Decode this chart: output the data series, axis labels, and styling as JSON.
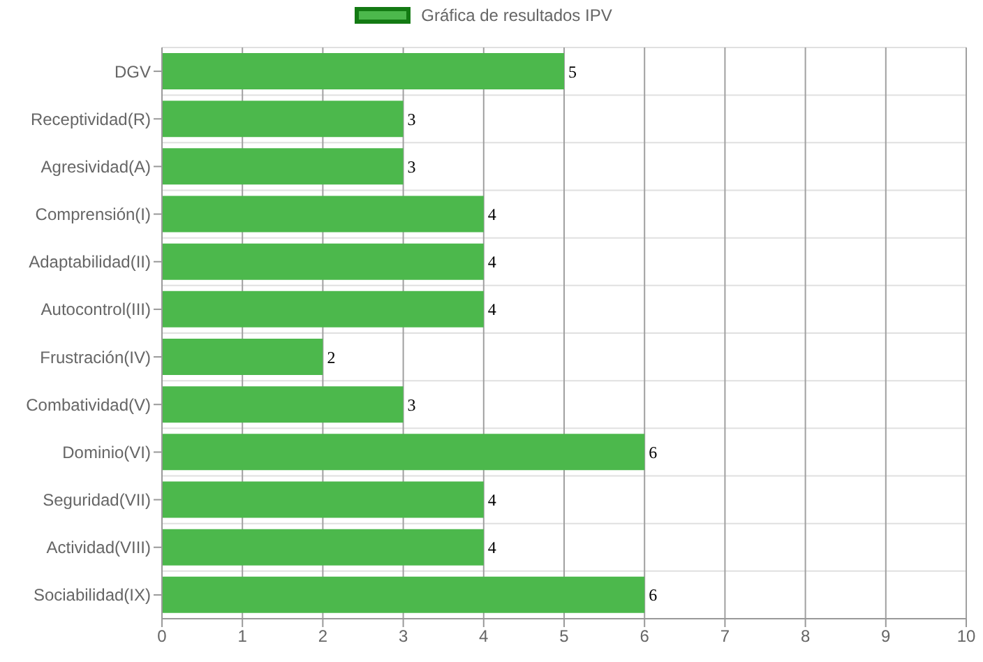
{
  "chart_data": {
    "type": "bar",
    "orientation": "horizontal",
    "categories": [
      "DGV",
      "Receptividad(R)",
      "Agresividad(A)",
      "Comprensión(I)",
      "Adaptabilidad(II)",
      "Autocontrol(III)",
      "Frustración(IV)",
      "Combatividad(V)",
      "Dominio(VI)",
      "Seguridad(VII)",
      "Actividad(VIII)",
      "Sociabilidad(IX)"
    ],
    "series": [
      {
        "name": "Gráfica de resultados IPV",
        "color": "#4cb84c",
        "values": [
          5,
          3,
          3,
          4,
          4,
          4,
          2,
          3,
          6,
          4,
          4,
          6
        ]
      }
    ],
    "xlim": [
      0,
      10
    ],
    "xticks": [
      0,
      1,
      2,
      3,
      4,
      5,
      6,
      7,
      8,
      9,
      10
    ],
    "grid": true,
    "legend": "top",
    "data_labels": true
  }
}
